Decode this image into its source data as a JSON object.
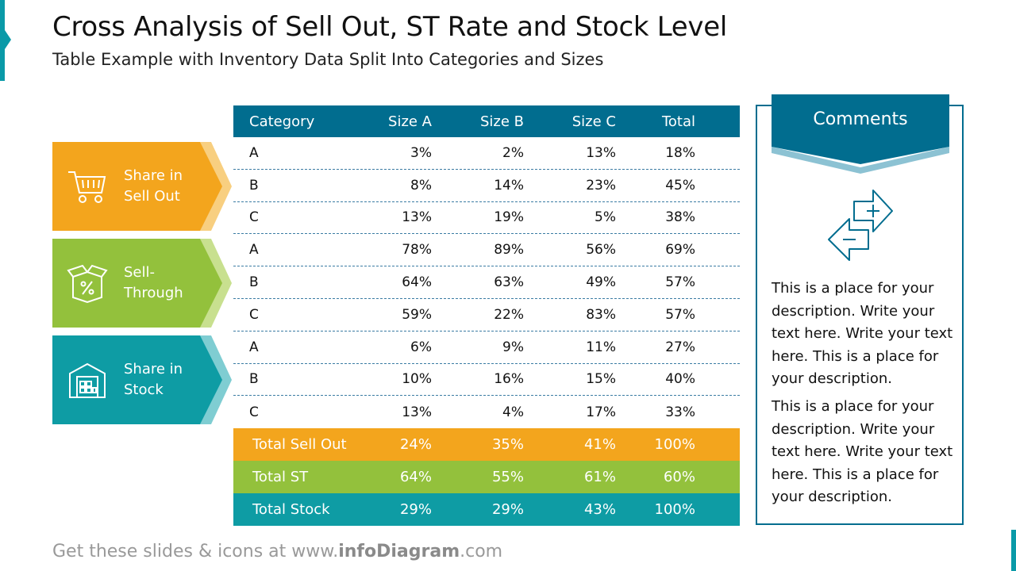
{
  "title": "Cross Analysis of Sell Out, ST Rate and Stock Level",
  "subtitle": "Table Example with Inventory Data Split Into Categories and Sizes",
  "categories": [
    {
      "label": "Share in\nSell Out",
      "icon": "shopping-cart-icon",
      "color": "#f3a51d"
    },
    {
      "label": "Sell-\nThrough",
      "icon": "percent-box-icon",
      "color": "#93c13c"
    },
    {
      "label": "Share in\nStock",
      "icon": "warehouse-icon",
      "color": "#0e9ca4"
    }
  ],
  "table": {
    "headers": [
      "Category",
      "Size A",
      "Size B",
      "Size C",
      "Total"
    ],
    "rows": [
      [
        "A",
        "3%",
        "2%",
        "13%",
        "18%"
      ],
      [
        "B",
        "8%",
        "14%",
        "23%",
        "45%"
      ],
      [
        "C",
        "13%",
        "19%",
        "5%",
        "38%"
      ],
      [
        "A",
        "78%",
        "89%",
        "56%",
        "69%"
      ],
      [
        "B",
        "64%",
        "63%",
        "49%",
        "57%"
      ],
      [
        "C",
        "59%",
        "22%",
        "83%",
        "57%"
      ],
      [
        "A",
        "6%",
        "9%",
        "11%",
        "27%"
      ],
      [
        "B",
        "10%",
        "16%",
        "15%",
        "40%"
      ],
      [
        "C",
        "13%",
        "4%",
        "17%",
        "33%"
      ]
    ],
    "totals": [
      [
        "Total Sell Out",
        "24%",
        "35%",
        "41%",
        "100%"
      ],
      [
        "Total ST",
        "64%",
        "55%",
        "61%",
        "60%"
      ],
      [
        "Total Stock",
        "29%",
        "29%",
        "43%",
        "100%"
      ]
    ]
  },
  "comments": {
    "title": "Comments",
    "icon": "plus-minus-arrows-icon",
    "paragraphs": [
      "This is a place for your description. Write your text here. Write your text here. This is a place for your description.",
      "This is a place for your description. Write your text here. Write your text here. This is a place for your description."
    ]
  },
  "footer": {
    "prefix": "Get these slides & icons at www.",
    "brand": "infoDiagram",
    "suffix": ".com"
  },
  "colors": {
    "header": "#016d8f",
    "orange": "#f3a51d",
    "green": "#93c13c",
    "teal": "#0e9ca4"
  }
}
